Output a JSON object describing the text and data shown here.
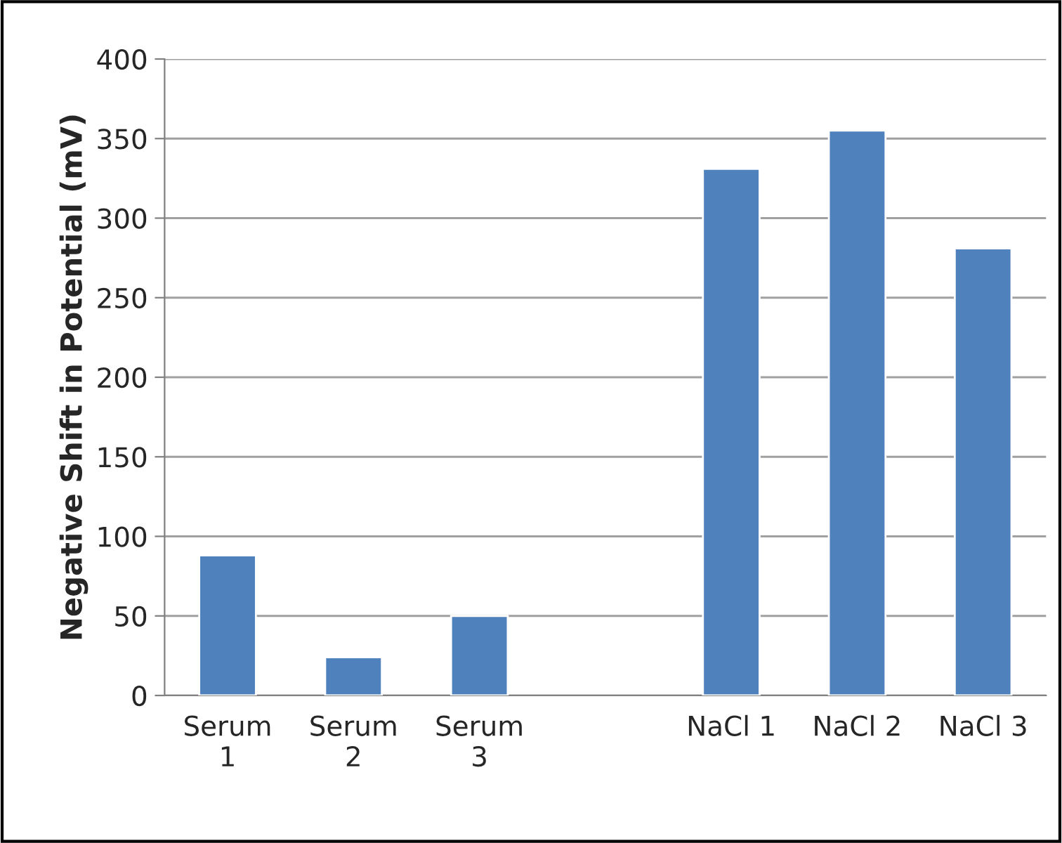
{
  "chart_data": {
    "type": "bar",
    "ylabel": "Negative Shift in Potential (mV)",
    "categories": [
      "Serum\n1",
      "Serum\n2",
      "Serum\n3",
      null,
      "NaCl 1",
      "NaCl 2",
      "NaCl 3"
    ],
    "values": [
      88,
      24,
      50,
      null,
      331,
      355,
      281
    ],
    "color": "#4f81bd",
    "ylim": [
      0,
      400
    ],
    "yticks": [
      0,
      50,
      100,
      150,
      200,
      250,
      300,
      350,
      400
    ],
    "grid": "y"
  }
}
